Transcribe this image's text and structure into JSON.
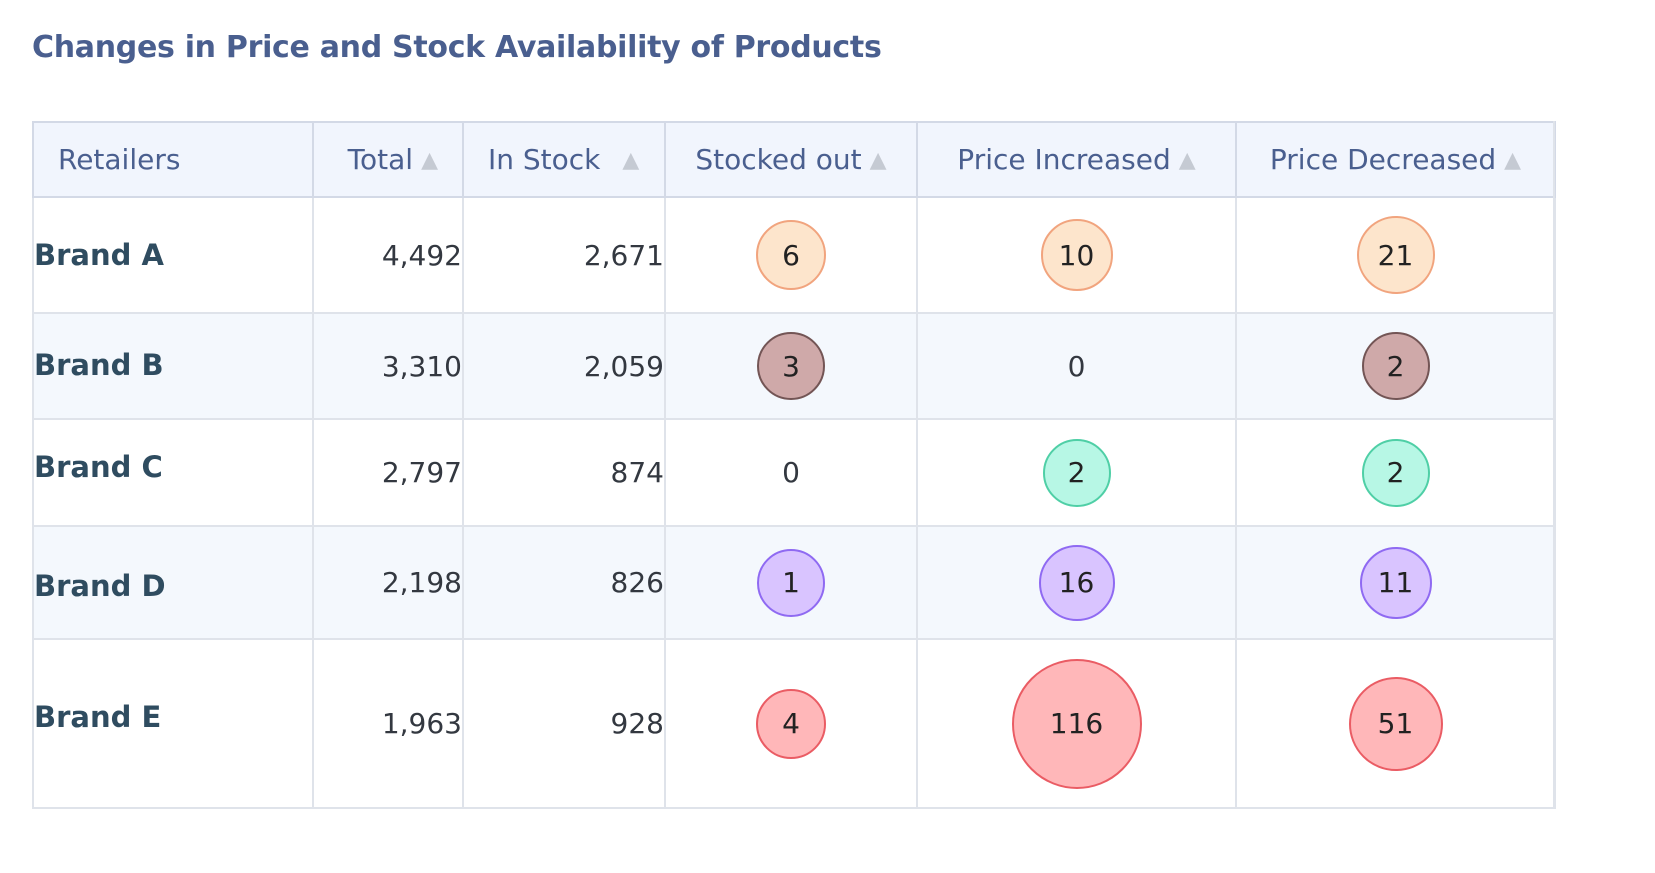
{
  "page": {
    "title": "Changes in Price and Stock Availability of Products"
  },
  "table": {
    "columns": [
      {
        "label": "Retailers",
        "sort_icon": "sort-asc-icon",
        "sortable": false
      },
      {
        "label": "Total",
        "sort_icon": "sort-asc-icon",
        "sortable": true
      },
      {
        "label": "In Stock",
        "sort_icon": "sort-asc-icon",
        "sortable": true
      },
      {
        "label": "Stocked out",
        "sort_icon": "sort-asc-icon",
        "sortable": true
      },
      {
        "label": "Price Increased",
        "sort_icon": "sort-asc-icon",
        "sortable": true
      },
      {
        "label": "Price Decreased",
        "sort_icon": "sort-asc-icon",
        "sortable": true
      }
    ],
    "sort_glyph": "▲",
    "rows": [
      {
        "retailer": "Brand A",
        "total": "4,492",
        "in_stock": "2,671",
        "stocked_out": "6",
        "price_increased": "10",
        "price_decreased": "21",
        "tone": "a"
      },
      {
        "retailer": "Brand B",
        "total": "3,310",
        "in_stock": "2,059",
        "stocked_out": "3",
        "price_increased": "0",
        "price_decreased": "2",
        "tone": "b"
      },
      {
        "retailer": "Brand C",
        "total": "2,797",
        "in_stock": "874",
        "stocked_out": "0",
        "price_increased": "2",
        "price_decreased": "2",
        "tone": "c"
      },
      {
        "retailer": "Brand D",
        "total": "2,198",
        "in_stock": "826",
        "stocked_out": "1",
        "price_increased": "16",
        "price_decreased": "11",
        "tone": "d"
      },
      {
        "retailer": "Brand E",
        "total": "1,963",
        "in_stock": "928",
        "stocked_out": "4",
        "price_increased": "116",
        "price_decreased": "51",
        "tone": "e"
      }
    ]
  },
  "colors": {
    "title": "#4a5f8f",
    "header_bg": "#f1f5fd",
    "row_stripe": "#f4f8fd",
    "tone_a": {
      "fill": "#fde5cc",
      "stroke": "#f1a47e"
    },
    "tone_b": {
      "fill": "#cfa9a9",
      "stroke": "#735555"
    },
    "tone_c": {
      "fill": "#b7f7e5",
      "stroke": "#4fcfa6"
    },
    "tone_d": {
      "fill": "#d9c4ff",
      "stroke": "#8f6af2"
    },
    "tone_e": {
      "fill": "#ffb7b9",
      "stroke": "#ea5c64"
    }
  }
}
